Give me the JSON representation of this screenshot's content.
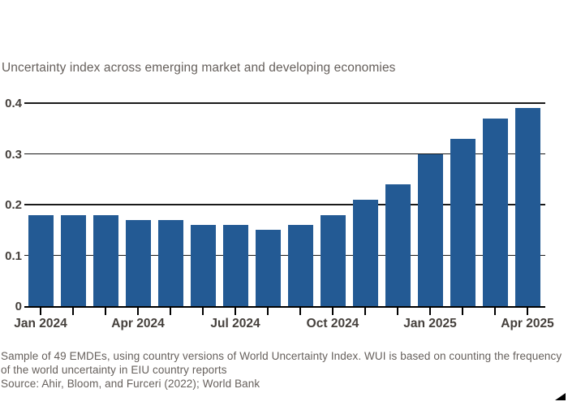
{
  "chart_data": {
    "type": "bar",
    "title": "Uncertainty index across emerging market and developing economies",
    "categories": [
      "Jan 2024",
      "Feb 2024",
      "Mar 2024",
      "Apr 2024",
      "May 2024",
      "Jun 2024",
      "Jul 2024",
      "Aug 2024",
      "Sep 2024",
      "Oct 2024",
      "Nov 2024",
      "Dec 2024",
      "Jan 2025",
      "Feb 2025",
      "Mar 2025",
      "Apr 2025"
    ],
    "values": [
      0.18,
      0.18,
      0.18,
      0.17,
      0.17,
      0.16,
      0.16,
      0.15,
      0.16,
      0.18,
      0.21,
      0.24,
      0.3,
      0.33,
      0.37,
      0.39
    ],
    "xlabel": "",
    "ylabel": "",
    "ylim": [
      0,
      0.4
    ],
    "yticks": [
      {
        "value": 0,
        "label": "0"
      },
      {
        "value": 0.1,
        "label": "0.1"
      },
      {
        "value": 0.2,
        "label": "0.2"
      },
      {
        "value": 0.3,
        "label": "0.3"
      },
      {
        "value": 0.4,
        "label": "0.4"
      }
    ],
    "x_tick_labels": [
      {
        "index": 0,
        "label": "Jan 2024"
      },
      {
        "index": 3,
        "label": "Apr 2024"
      },
      {
        "index": 6,
        "label": "Jul 2024"
      },
      {
        "index": 9,
        "label": "Oct 2024"
      },
      {
        "index": 12,
        "label": "Jan 2025"
      },
      {
        "index": 15,
        "label": "Apr 2025"
      }
    ],
    "grid": "horizontal",
    "legend": "none"
  },
  "footer": {
    "notes": [
      "Sample of 49 EMDEs, using country versions of World Uncertainty Index. WUI is based on counting the frequency",
      "of the world uncertainty in EIU country reports"
    ],
    "source": "Source: Ahir, Bloom, and Furceri (2022); World Bank"
  },
  "colors": {
    "bar": "#235A94",
    "grid": "#1A1A1A",
    "axis": "#000000",
    "text_gray": "#66605C",
    "tick_label": "#45403C",
    "background": "#FFFFFF"
  }
}
